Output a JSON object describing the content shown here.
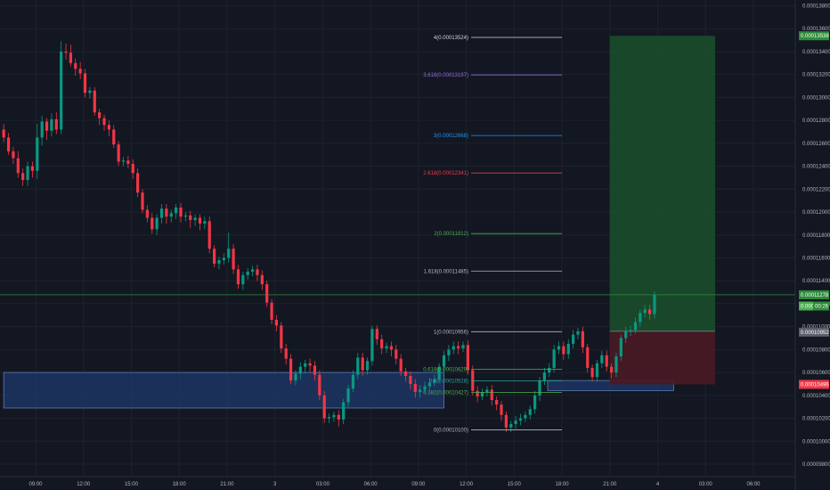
{
  "chart_data": {
    "type": "candlestick",
    "y_axis": {
      "range": [
        9.75e-05,
        0.000139
      ],
      "tick_labels": [
        "0.00013800",
        "0.00013600",
        "0.00013400",
        "0.00013200",
        "0.00013000",
        "0.00012800",
        "0.00012600",
        "0.00012400",
        "0.00012200",
        "0.00012000",
        "0.00011800",
        "0.00011600",
        "0.00011400",
        "0.00011200",
        "0.00011000",
        "0.00010800",
        "0.00010600",
        "0.00010400",
        "0.00010200",
        "0.00010000",
        "0.00009800"
      ],
      "tick_values": [
        0.000138,
        0.000136,
        0.000134,
        0.000132,
        0.00013,
        0.000128,
        0.000126,
        0.000124,
        0.000122,
        0.00012,
        0.000118,
        0.000116,
        0.000114,
        0.000112,
        0.00011,
        0.000108,
        0.000106,
        0.000104,
        0.000102,
        0.0001,
        9.8e-05
      ]
    },
    "x_axis": {
      "tick_labels": [
        "09:00",
        "12:00",
        "15:00",
        "18:00",
        "21:00",
        "3",
        "03:00",
        "06:00",
        "09:00",
        "12:00",
        "15:00",
        "18:00",
        "21:00",
        "4",
        "03:00",
        "06:00"
      ],
      "tick_hours": [
        9,
        12,
        15,
        18,
        21,
        24,
        27,
        30,
        33,
        36,
        39,
        42,
        45,
        48,
        51,
        54
      ],
      "range_hours": [
        7,
        56.7
      ]
    },
    "candles": [
      [
        7.0,
        0.0001272,
        0.0001265,
        0.0001277,
        0.0001261
      ],
      [
        7.3,
        0.0001265,
        0.0001253,
        0.0001269,
        0.000125
      ],
      [
        7.6,
        0.0001253,
        0.0001247,
        0.0001257,
        0.0001242
      ],
      [
        7.9,
        0.0001247,
        0.0001234,
        0.0001253,
        0.000123
      ],
      [
        8.2,
        0.0001234,
        0.0001228,
        0.0001238,
        0.0001223
      ],
      [
        8.5,
        0.0001228,
        0.000124,
        0.0001244,
        0.0001223
      ],
      [
        8.8,
        0.000124,
        0.0001236,
        0.0001244,
        0.000123
      ],
      [
        9.1,
        0.0001236,
        0.0001265,
        0.0001277,
        0.0001229
      ],
      [
        9.4,
        0.0001265,
        0.0001279,
        0.0001284,
        0.0001258
      ],
      [
        9.7,
        0.0001279,
        0.0001271,
        0.0001282,
        0.0001263
      ],
      [
        10.0,
        0.0001271,
        0.0001281,
        0.0001286,
        0.0001266
      ],
      [
        10.3,
        0.0001281,
        0.0001272,
        0.0001287,
        0.0001268
      ],
      [
        10.6,
        0.0001272,
        0.000134,
        0.0001349,
        0.0001268
      ],
      [
        10.9,
        0.000134,
        0.0001339,
        0.0001347,
        0.0001333
      ],
      [
        11.2,
        0.0001339,
        0.000133,
        0.0001346,
        0.0001327
      ],
      [
        11.5,
        0.000133,
        0.0001325,
        0.0001334,
        0.0001319
      ],
      [
        11.8,
        0.0001325,
        0.0001321,
        0.0001331,
        0.0001316
      ],
      [
        12.1,
        0.0001321,
        0.0001304,
        0.0001325,
        0.00013
      ],
      [
        12.4,
        0.0001304,
        0.0001306,
        0.0001309,
        0.0001299
      ],
      [
        12.7,
        0.0001306,
        0.0001287,
        0.0001309,
        0.0001284
      ],
      [
        13.0,
        0.0001287,
        0.0001282,
        0.000129,
        0.0001276
      ],
      [
        13.3,
        0.0001282,
        0.0001276,
        0.0001285,
        0.0001271
      ],
      [
        13.6,
        0.0001276,
        0.0001272,
        0.000128,
        0.0001266
      ],
      [
        13.9,
        0.0001272,
        0.0001259,
        0.0001276,
        0.0001256
      ],
      [
        14.2,
        0.0001259,
        0.0001244,
        0.0001262,
        0.000124
      ],
      [
        14.5,
        0.0001244,
        0.0001245,
        0.0001248,
        0.000124
      ],
      [
        14.8,
        0.0001245,
        0.0001242,
        0.0001249,
        0.0001238
      ],
      [
        15.1,
        0.0001242,
        0.0001234,
        0.0001246,
        0.0001229
      ],
      [
        15.4,
        0.0001234,
        0.0001217,
        0.0001238,
        0.0001213
      ],
      [
        15.7,
        0.0001217,
        0.0001202,
        0.000122,
        0.0001199
      ],
      [
        16.0,
        0.0001202,
        0.0001195,
        0.0001206,
        0.0001191
      ],
      [
        16.3,
        0.0001195,
        0.0001185,
        0.0001199,
        0.0001181
      ],
      [
        16.6,
        0.0001185,
        0.0001195,
        0.0001198,
        0.000118
      ],
      [
        16.9,
        0.0001195,
        0.0001203,
        0.0001207,
        0.000119
      ],
      [
        17.2,
        0.0001203,
        0.0001196,
        0.0001207,
        0.000119
      ],
      [
        17.5,
        0.0001196,
        0.0001199,
        0.0001202,
        0.0001191
      ],
      [
        17.8,
        0.0001199,
        0.0001204,
        0.0001207,
        0.0001194
      ],
      [
        18.1,
        0.0001204,
        0.0001196,
        0.0001208,
        0.0001191
      ],
      [
        18.4,
        0.0001196,
        0.0001197,
        0.00012,
        0.0001192
      ],
      [
        18.7,
        0.0001197,
        0.0001193,
        0.0001201,
        0.0001186
      ],
      [
        19.0,
        0.0001193,
        0.0001195,
        0.0001198,
        0.0001188
      ],
      [
        19.3,
        0.0001195,
        0.000119,
        0.0001198,
        0.0001184
      ],
      [
        19.6,
        0.000119,
        0.0001192,
        0.0001196,
        0.0001185
      ],
      [
        19.9,
        0.0001192,
        0.0001168,
        0.0001196,
        0.0001164
      ],
      [
        20.2,
        0.0001168,
        0.0001155,
        0.0001171,
        0.0001152
      ],
      [
        20.5,
        0.0001155,
        0.0001158,
        0.0001161,
        0.000115
      ],
      [
        20.8,
        0.0001158,
        0.000116,
        0.0001164,
        0.0001154
      ],
      [
        21.1,
        0.000116,
        0.0001168,
        0.0001182,
        0.0001156
      ],
      [
        21.4,
        0.0001168,
        0.000115,
        0.0001172,
        0.0001146
      ],
      [
        21.7,
        0.000115,
        0.0001137,
        0.0001154,
        0.0001133
      ],
      [
        22.0,
        0.0001137,
        0.0001145,
        0.0001148,
        0.0001132
      ],
      [
        22.3,
        0.0001145,
        0.0001148,
        0.0001151,
        0.0001141
      ],
      [
        22.6,
        0.0001148,
        0.000115,
        0.0001153,
        0.0001144
      ],
      [
        22.9,
        0.000115,
        0.0001145,
        0.0001154,
        0.000114
      ],
      [
        23.2,
        0.0001145,
        0.0001137,
        0.0001149,
        0.0001132
      ],
      [
        23.5,
        0.0001137,
        0.0001121,
        0.000114,
        0.0001117
      ],
      [
        23.8,
        0.0001121,
        0.0001106,
        0.0001124,
        0.0001102
      ],
      [
        24.1,
        0.0001106,
        0.0001101,
        0.000111,
        0.0001096
      ],
      [
        24.4,
        0.0001101,
        0.0001081,
        0.0001104,
        0.0001077
      ],
      [
        24.7,
        0.0001081,
        0.0001072,
        0.0001085,
        0.0001067
      ],
      [
        25.0,
        0.0001072,
        0.0001053,
        0.0001076,
        0.000105
      ],
      [
        25.3,
        0.0001053,
        0.0001059,
        0.0001062,
        0.0001049
      ],
      [
        25.6,
        0.0001059,
        0.0001065,
        0.0001069,
        0.0001054
      ],
      [
        25.9,
        0.0001065,
        0.0001068,
        0.0001071,
        0.0001059
      ],
      [
        26.2,
        0.0001068,
        0.0001066,
        0.0001072,
        0.000106
      ],
      [
        26.5,
        0.0001066,
        0.0001058,
        0.000107,
        0.0001053
      ],
      [
        26.8,
        0.0001058,
        0.000104,
        0.0001062,
        0.0001036
      ],
      [
        27.1,
        0.000104,
        0.000102,
        0.0001044,
        0.0001016
      ],
      [
        27.4,
        0.000102,
        0.0001021,
        0.0001024,
        0.0001016
      ],
      [
        27.7,
        0.0001021,
        0.0001023,
        0.0001026,
        0.0001017
      ],
      [
        28.0,
        0.0001023,
        0.0001019,
        0.0001027,
        0.0001013
      ],
      [
        28.3,
        0.0001019,
        0.0001034,
        0.0001037,
        0.0001015
      ],
      [
        28.6,
        0.0001034,
        0.0001046,
        0.0001049,
        0.000103
      ],
      [
        28.9,
        0.0001046,
        0.0001058,
        0.0001062,
        0.0001043
      ],
      [
        29.2,
        0.0001058,
        0.0001073,
        0.0001077,
        0.0001054
      ],
      [
        29.5,
        0.0001073,
        0.0001062,
        0.0001077,
        0.0001057
      ],
      [
        29.8,
        0.0001062,
        0.000107,
        0.0001073,
        0.0001058
      ],
      [
        30.1,
        0.000107,
        0.0001098,
        0.0001101,
        0.0001066
      ],
      [
        30.4,
        0.0001098,
        0.0001089,
        0.0001101,
        0.0001084
      ],
      [
        30.7,
        0.0001089,
        0.0001081,
        0.0001093,
        0.0001076
      ],
      [
        31.0,
        0.0001081,
        0.0001083,
        0.0001086,
        0.0001077
      ],
      [
        31.3,
        0.0001083,
        0.000108,
        0.0001087,
        0.0001074
      ],
      [
        31.6,
        0.000108,
        0.0001072,
        0.0001084,
        0.0001067
      ],
      [
        31.9,
        0.0001072,
        0.0001061,
        0.0001076,
        0.0001057
      ],
      [
        32.2,
        0.0001061,
        0.0001057,
        0.0001064,
        0.0001052
      ],
      [
        32.5,
        0.0001057,
        0.000105,
        0.0001061,
        0.0001045
      ],
      [
        32.8,
        0.000105,
        0.0001043,
        0.0001054,
        0.0001038
      ],
      [
        33.1,
        0.0001043,
        0.0001045,
        0.0001049,
        0.0001038
      ],
      [
        33.4,
        0.0001045,
        0.0001048,
        0.0001052,
        0.0001042
      ],
      [
        33.7,
        0.0001048,
        0.0001051,
        0.0001055,
        0.0001045
      ],
      [
        34.0,
        0.0001051,
        0.0001054,
        0.0001058,
        0.0001048
      ],
      [
        34.3,
        0.0001054,
        0.0001065,
        0.0001068,
        0.0001051
      ],
      [
        34.6,
        0.0001065,
        0.0001075,
        0.0001079,
        0.000106
      ],
      [
        34.9,
        0.0001075,
        0.000108,
        0.0001084,
        0.000107
      ],
      [
        35.2,
        0.000108,
        0.0001083,
        0.0001087,
        0.0001076
      ],
      [
        35.5,
        0.0001083,
        0.0001081,
        0.0001087,
        0.0001076
      ],
      [
        35.8,
        0.0001081,
        0.0001084,
        0.0001087,
        0.0001078
      ],
      [
        36.1,
        0.0001084,
        0.0001062,
        0.0001088,
        0.0001058
      ],
      [
        36.4,
        0.0001062,
        0.0001044,
        0.0001066,
        0.000104
      ],
      [
        36.7,
        0.0001044,
        0.0001039,
        0.0001048,
        0.0001034
      ],
      [
        37.0,
        0.0001039,
        0.0001043,
        0.0001046,
        0.0001036
      ],
      [
        37.3,
        0.0001043,
        0.0001045,
        0.0001048,
        0.0001039
      ],
      [
        37.6,
        0.0001045,
        0.0001036,
        0.0001049,
        0.0001031
      ],
      [
        37.9,
        0.0001036,
        0.0001032,
        0.0001039,
        0.0001027
      ],
      [
        38.2,
        0.0001032,
        0.0001023,
        0.0001035,
        0.0001018
      ],
      [
        38.5,
        0.0001023,
        0.0001012,
        0.0001026,
        0.0001008
      ],
      [
        38.8,
        0.0001012,
        0.0001015,
        0.0001018,
        0.0001008
      ],
      [
        39.1,
        0.0001015,
        0.0001018,
        0.0001022,
        0.0001011
      ],
      [
        39.4,
        0.0001018,
        0.000102,
        0.0001024,
        0.0001014
      ],
      [
        39.7,
        0.000102,
        0.0001023,
        0.0001026,
        0.0001017
      ],
      [
        40.0,
        0.0001023,
        0.0001028,
        0.0001031,
        0.0001019
      ],
      [
        40.3,
        0.0001028,
        0.000104,
        0.0001044,
        0.0001024
      ],
      [
        40.6,
        0.000104,
        0.0001053,
        0.0001056,
        0.0001035
      ],
      [
        40.9,
        0.0001053,
        0.000106,
        0.0001064,
        0.0001049
      ],
      [
        41.2,
        0.000106,
        0.0001064,
        0.0001068,
        0.0001056
      ],
      [
        41.5,
        0.0001064,
        0.000108,
        0.0001084,
        0.000106
      ],
      [
        41.8,
        0.000108,
        0.0001083,
        0.0001087,
        0.0001076
      ],
      [
        42.1,
        0.0001083,
        0.0001076,
        0.0001087,
        0.0001071
      ],
      [
        42.4,
        0.0001076,
        0.0001085,
        0.0001089,
        0.0001072
      ],
      [
        42.7,
        0.0001085,
        0.0001093,
        0.0001097,
        0.0001081
      ],
      [
        43.0,
        0.0001093,
        0.0001096,
        0.0001099,
        0.0001089
      ],
      [
        43.3,
        0.0001096,
        0.0001082,
        0.00011,
        0.0001077
      ],
      [
        43.6,
        0.0001082,
        0.0001064,
        0.0001085,
        0.000106
      ],
      [
        43.9,
        0.0001064,
        0.0001056,
        0.0001067,
        0.0001052
      ],
      [
        44.2,
        0.0001056,
        0.0001068,
        0.0001071,
        0.0001052
      ],
      [
        44.5,
        0.0001068,
        0.0001075,
        0.0001079,
        0.0001064
      ],
      [
        44.8,
        0.0001075,
        0.0001065,
        0.0001079,
        0.0001061
      ],
      [
        45.1,
        0.0001065,
        0.000106,
        0.0001068,
        0.0001055
      ],
      [
        45.4,
        0.000106,
        0.0001074,
        0.0001077,
        0.0001056
      ],
      [
        45.7,
        0.0001074,
        0.000109,
        0.0001093,
        0.000107
      ],
      [
        46.0,
        0.000109,
        0.0001096,
        0.00011,
        0.0001086
      ],
      [
        46.3,
        0.0001096,
        0.0001097,
        0.0001101,
        0.0001092
      ],
      [
        46.6,
        0.0001097,
        0.0001104,
        0.0001108,
        0.0001094
      ],
      [
        46.9,
        0.0001104,
        0.0001112,
        0.0001115,
        0.00011
      ],
      [
        47.2,
        0.0001112,
        0.0001115,
        0.0001119,
        0.0001108
      ],
      [
        47.5,
        0.0001115,
        0.0001111,
        0.0001119,
        0.0001106
      ],
      [
        47.8,
        0.0001111,
        0.0001128,
        0.0001131,
        0.0001107
      ]
    ],
    "fib_levels": [
      {
        "label": "4(0.00013524)",
        "value": 0.00013524,
        "color": "#d1d4dc"
      },
      {
        "label": "3.618(0.00013197)",
        "value": 0.00013197,
        "color": "#9c6ade"
      },
      {
        "label": "3(0.00012668)",
        "value": 0.00012668,
        "color": "#2196f3"
      },
      {
        "label": "2.618(0.00012341)",
        "value": 0.00012341,
        "color": "#f23645"
      },
      {
        "label": "2(0.00011812)",
        "value": 0.00011812,
        "color": "#4caf50"
      },
      {
        "label": "1.618(0.00011485)",
        "value": 0.00011485,
        "color": "#b2b5be"
      },
      {
        "label": "1(0.00010956)",
        "value": 0.00010956,
        "color": "#b2b5be"
      },
      {
        "label": "0.618(0.00010629)",
        "value": 0.00010629,
        "color": "#4caf50"
      },
      {
        "label": "0.5(0.00010528)",
        "value": 0.00010528,
        "color": "#26a69a"
      },
      {
        "label": "0.382(0.00010427)",
        "value": 0.00010427,
        "color": "#4caf50"
      },
      {
        "label": "0(0.00010100)",
        "value": 0.000101,
        "color": "#b2b5be"
      }
    ],
    "fib_x_range_hours": [
      36.3,
      42.0
    ],
    "price_badges": [
      {
        "text": "0.00013538",
        "value": 0.00013538,
        "color": "#2e8b3a"
      },
      {
        "text": "0.00011278",
        "value": 0.00011278,
        "color": "#2e8b3a"
      },
      {
        "text": "0.0001",
        "value": 0.0001118,
        "color": "#4caf50",
        "suffix": "00:26"
      },
      {
        "text": "0.00010952",
        "value": 0.00010952,
        "color": "#5d606b"
      },
      {
        "text": "0.00010496",
        "value": 0.00010496,
        "color": "#f23645"
      }
    ],
    "current_price": 0.00011278,
    "long_position": {
      "x_hours": [
        45.0,
        51.6
      ],
      "entry": 0.0001096,
      "target": 0.00013538,
      "stop": 0.00010496
    },
    "zones": [
      {
        "x_hours": [
          7.0,
          34.6
        ],
        "y": [
          0.0001029,
          0.000106
        ]
      },
      {
        "x_hours": [
          41.1,
          49.0
        ],
        "y": [
          0.00010442,
          0.0001053
        ]
      }
    ],
    "colors": {
      "up": "#089981",
      "down": "#f23645",
      "up_mark": "#0ecb81",
      "down_mark": "#f6465d",
      "zone": "#1e3a6b",
      "tp": "#1b4d2b",
      "sl": "#4a1a24",
      "grid": "#1e222d",
      "bg": "#131722"
    }
  }
}
